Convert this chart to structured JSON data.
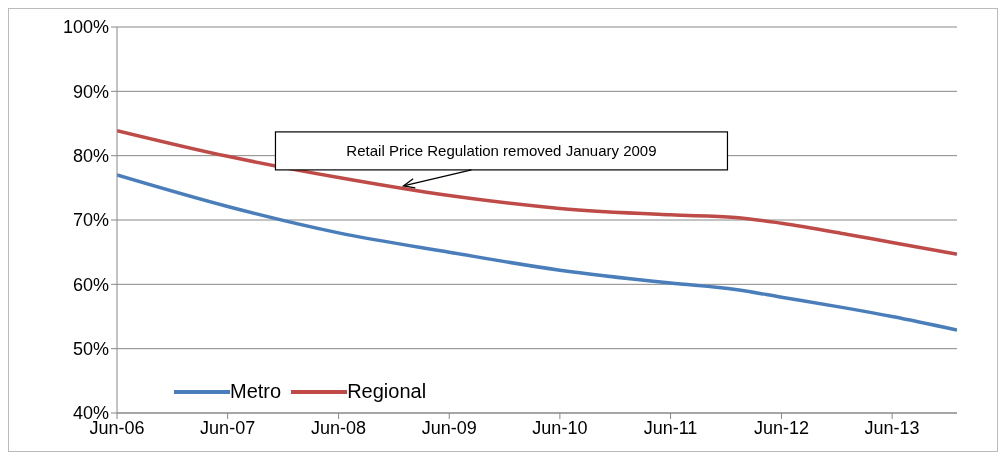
{
  "chart_data": {
    "type": "line",
    "x": [
      "2006-06",
      "2007-06",
      "2008-06",
      "2009-06",
      "2010-06",
      "2011-06",
      "2012-01",
      "2012-06",
      "2013-01",
      "2013-06",
      "2014-01"
    ],
    "series": [
      {
        "name": "Metro",
        "color": "#4a7ebb",
        "values": [
          77,
          72.1,
          68,
          65,
          62.2,
          60.2,
          59.2,
          58,
          56.3,
          55,
          52.9
        ]
      },
      {
        "name": "Regional",
        "color": "#be4b48",
        "values": [
          83.9,
          79.9,
          76.6,
          73.8,
          71.8,
          70.8,
          70.4,
          69.5,
          67.8,
          66.5,
          64.7
        ]
      }
    ],
    "xlim": [
      "2006-06",
      "2014-01"
    ],
    "xticks": [
      {
        "value": "2006-06",
        "label": "Jun-06"
      },
      {
        "value": "2007-06",
        "label": "Jun-07"
      },
      {
        "value": "2008-06",
        "label": "Jun-08"
      },
      {
        "value": "2009-06",
        "label": "Jun-09"
      },
      {
        "value": "2010-06",
        "label": "Jun-10"
      },
      {
        "value": "2011-06",
        "label": "Jun-11"
      },
      {
        "value": "2012-06",
        "label": "Jun-12"
      },
      {
        "value": "2013-06",
        "label": "Jun-13"
      }
    ],
    "ylim": [
      40,
      100
    ],
    "yticks": [
      {
        "value": 40,
        "label": "40%"
      },
      {
        "value": 50,
        "label": "50%"
      },
      {
        "value": 60,
        "label": "60%"
      },
      {
        "value": 70,
        "label": "70%"
      },
      {
        "value": 80,
        "label": "80%"
      },
      {
        "value": 90,
        "label": "90%"
      },
      {
        "value": 100,
        "label": "100%"
      }
    ],
    "grid": "y",
    "legend": "bottom left",
    "marker": "none",
    "line_style": "solid",
    "annotations": [
      {
        "text": "Retail Price Regulation removed January 2009",
        "x": "2009-01",
        "y": 75.3
      }
    ]
  }
}
